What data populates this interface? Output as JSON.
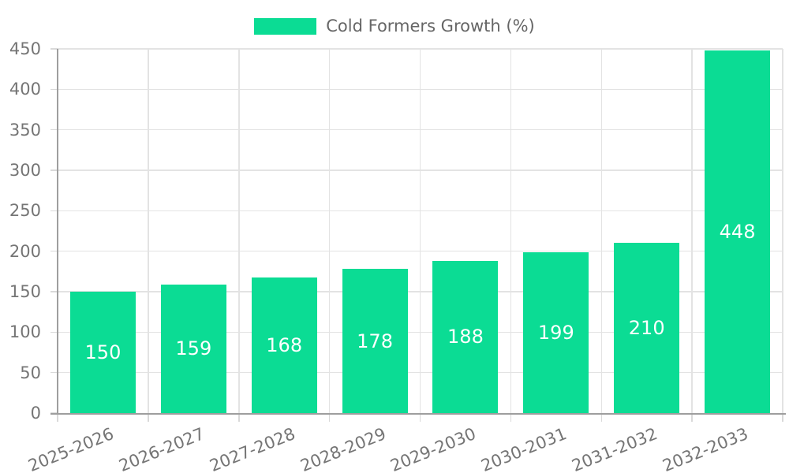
{
  "chart_data": {
    "type": "bar",
    "title": "Cold Formers Growth (%)",
    "categories": [
      "2025-2026",
      "2026-2027",
      "2027-2028",
      "2028-2029",
      "2029-2030",
      "2030-2031",
      "2031-2032",
      "2032-2033"
    ],
    "values": [
      150,
      159,
      168,
      178,
      188,
      199,
      210,
      448
    ],
    "yticks": [
      0,
      50,
      100,
      150,
      200,
      250,
      300,
      350,
      400,
      450
    ],
    "ylim": [
      0,
      450
    ],
    "xlabel": "",
    "ylabel": "",
    "grid": true,
    "legend_position": "top",
    "colors": {
      "bar": "#0bdc94",
      "bar_label": "#ffffff",
      "axis": "#9e9e9e",
      "gridline": "#e3e3e3",
      "tick_mark": "#d9d9d9",
      "tick_label": "#757575",
      "legend_text": "#666666",
      "background": "#ffffff"
    }
  }
}
